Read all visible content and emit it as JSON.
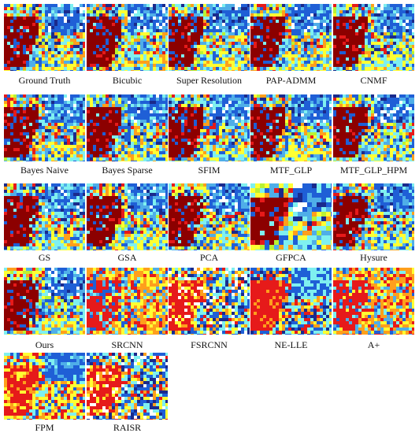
{
  "palette": {
    "dark_red": "#8c0000",
    "red": "#e61a1a",
    "orange": "#ff9f1c",
    "yellow": "#ffff33",
    "lime": "#b9f233",
    "cyan": "#7ff0f0",
    "sky_blue": "#4faee8",
    "blue": "#1f5fd6",
    "navy": "#1a2a8c",
    "white": "#ffffff"
  },
  "panels": [
    {
      "caption": "Ground Truth",
      "style": "gt"
    },
    {
      "caption": "Bicubic",
      "style": "gt"
    },
    {
      "caption": "Super Resolution",
      "style": "gt"
    },
    {
      "caption": "PAP-ADMM",
      "style": "gt"
    },
    {
      "caption": "CNMF",
      "style": "gt"
    },
    {
      "caption": "Bayes Naive",
      "style": "gt"
    },
    {
      "caption": "Bayes Sparse",
      "style": "gt"
    },
    {
      "caption": "SFIM",
      "style": "gt"
    },
    {
      "caption": "MTF_GLP",
      "style": "gt"
    },
    {
      "caption": "MTF_GLP_HPM",
      "style": "gt"
    },
    {
      "caption": "GS",
      "style": "gt"
    },
    {
      "caption": "GSA",
      "style": "gt"
    },
    {
      "caption": "PCA",
      "style": "gt"
    },
    {
      "caption": "GFPCA",
      "style": "smooth"
    },
    {
      "caption": "Hysure",
      "style": "gt"
    },
    {
      "caption": "Ours",
      "style": "gt"
    },
    {
      "caption": "SRCNN",
      "style": "warm"
    },
    {
      "caption": "FSRCNN",
      "style": "noisy"
    },
    {
      "caption": "NE-LLE",
      "style": "red"
    },
    {
      "caption": "A+",
      "style": "warm"
    },
    {
      "caption": "FPM",
      "style": "fpm"
    },
    {
      "caption": "RAISR",
      "style": "noisy"
    }
  ]
}
